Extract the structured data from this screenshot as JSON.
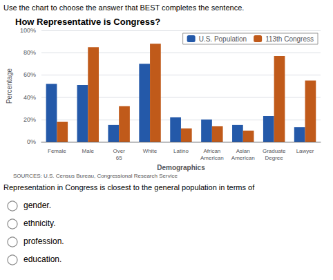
{
  "chart_data": {
    "type": "bar",
    "title": "How Representative is Congress?",
    "xlabel": "Demographics",
    "ylabel": "Percentage",
    "categories": [
      "Female",
      "Male",
      "Over\n65",
      "White",
      "Latino",
      "African\nAmerican",
      "Asian\nAmerican",
      "Graduate\nDegree",
      "Lawyer"
    ],
    "series": [
      {
        "name": "U.S. Population",
        "color": "#2459A9",
        "values": [
          52,
          51,
          15,
          70,
          22,
          20,
          15,
          23,
          13
        ]
      },
      {
        "name": "113th Congress",
        "color": "#C05A1A",
        "values": [
          18,
          85,
          32,
          88,
          12,
          14,
          10,
          77,
          55
        ]
      }
    ],
    "ylim": [
      0,
      100
    ],
    "yticks": [
      {
        "value": 0,
        "label": "0%"
      },
      {
        "value": 20,
        "label": "20%"
      },
      {
        "value": 40,
        "label": "40%"
      },
      {
        "value": 60,
        "label": "60%"
      },
      {
        "value": 80,
        "label": "80%"
      },
      {
        "value": 100,
        "label": "100%"
      }
    ],
    "grid": true,
    "legend": "upper right",
    "annotations": [
      "Use the chart to choose the answer that BEST completes the sentence.",
      "SOURCES: U.S. Census Bureau, Congressional Research Service",
      "Representation in Congress is closest to the general population in terms of",
      "gender.",
      "ethnicity.",
      "profession.",
      "education."
    ]
  }
}
